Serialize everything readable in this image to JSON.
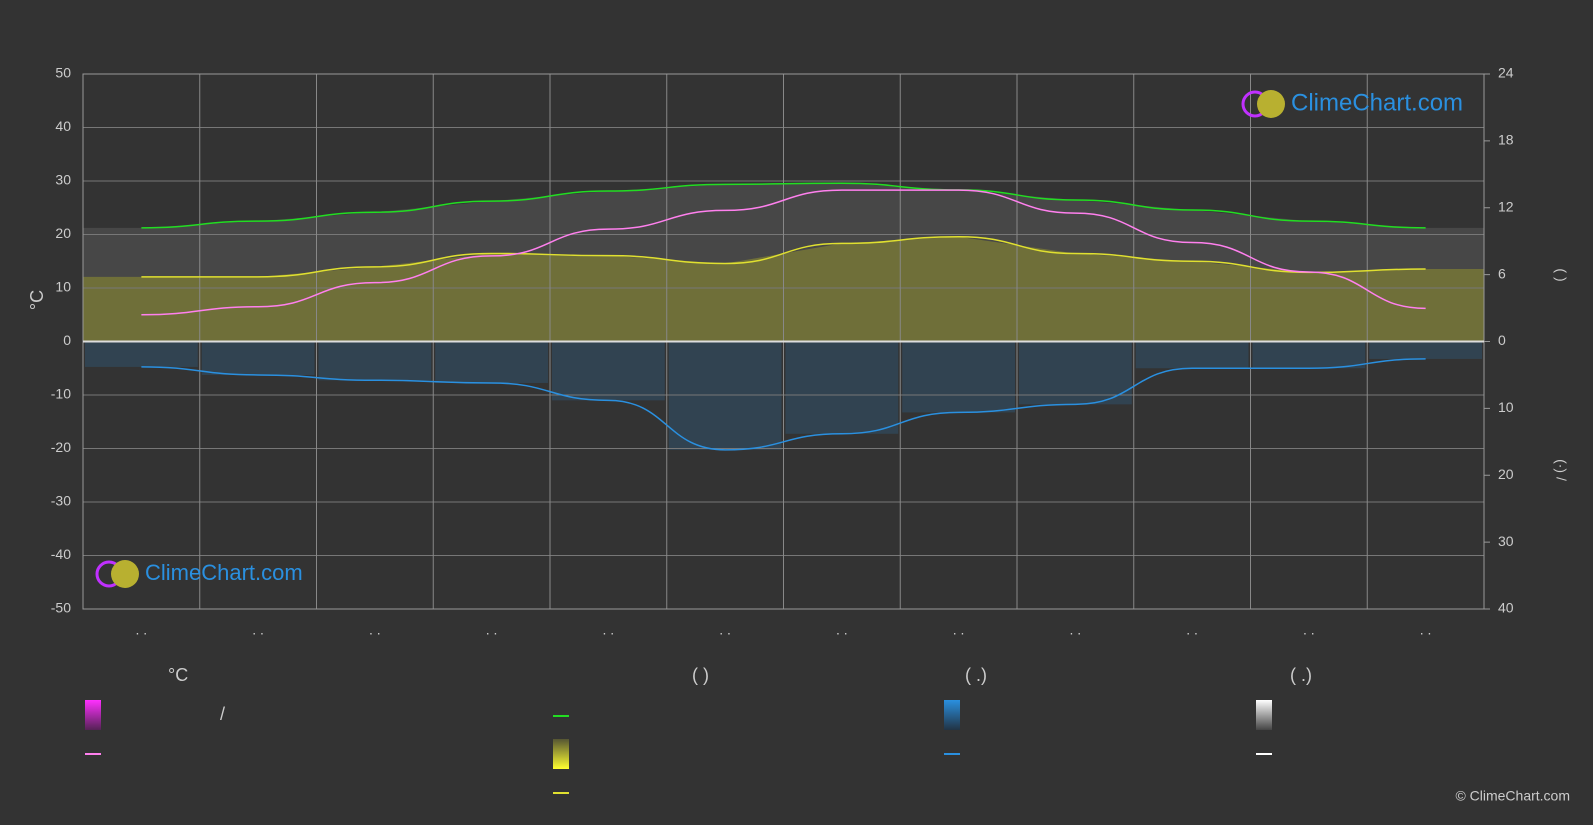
{
  "chart_data": {
    "type": "line",
    "categories": [
      ". .",
      ". .",
      ". .",
      ". .",
      ". .",
      ". .",
      ". .",
      ". .",
      ". .",
      ". .",
      ". .",
      ". ."
    ],
    "ylabel": "°C",
    "y2label": "(        )",
    "y3label": "(·)      /",
    "ylim": [
      -50,
      50
    ],
    "yticks": [
      -50,
      -40,
      -30,
      -20,
      -10,
      0,
      10,
      20,
      30,
      40,
      50
    ],
    "y2lim": [
      0,
      24
    ],
    "y2ticks": [
      0,
      6,
      12,
      18,
      24
    ],
    "y3lim": [
      0,
      40
    ],
    "y3ticks": [
      10,
      20,
      30,
      40
    ],
    "grid": true,
    "series": [
      {
        "color": "#22dd22",
        "axis": "y2",
        "values": [
          10.2,
          10.8,
          11.6,
          12.6,
          13.5,
          14.1,
          14.2,
          13.6,
          12.7,
          11.8,
          10.8,
          10.2
        ]
      },
      {
        "color": "#e0e030",
        "axis": "y2",
        "values": [
          5.8,
          5.8,
          6.7,
          7.9,
          7.7,
          7.0,
          8.8,
          9.4,
          7.9,
          7.2,
          6.2,
          6.5
        ]
      },
      {
        "color": "#ff80ee",
        "axis": "y",
        "values": [
          5.0,
          6.5,
          11.0,
          16.0,
          21.0,
          24.5,
          28.3,
          28.3,
          24.0,
          18.5,
          13.0,
          6.2
        ]
      },
      {
        "color": "#2a90e0",
        "axis": "y3",
        "values": [
          3.8,
          5.0,
          5.8,
          6.2,
          8.8,
          16.2,
          13.8,
          10.6,
          9.4,
          4.0,
          4.0,
          2.6
        ]
      }
    ],
    "legend": {
      "headers": [
        "°C",
        "(          )",
        "(   .)",
        "(   .)"
      ],
      "separator": "/"
    },
    "watermark": "ClimeChart.com",
    "copyright": "© ClimeChart.com"
  }
}
